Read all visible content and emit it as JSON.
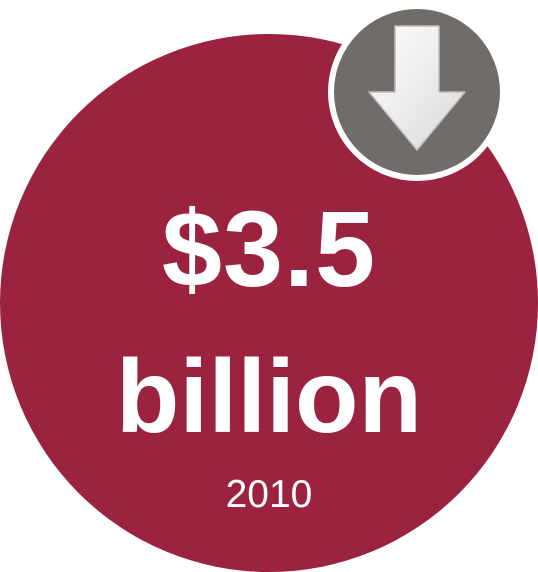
{
  "stat": {
    "amount": "$3.5",
    "unit": "billion",
    "year": "2010"
  },
  "badge": {
    "icon": "arrow-down-icon",
    "direction": "down"
  },
  "colors": {
    "circle": "#9b2340",
    "badge": "#6f6c6a",
    "badge_ring": "#ffffff",
    "arrow": "#ffffff",
    "text": "#ffffff"
  }
}
